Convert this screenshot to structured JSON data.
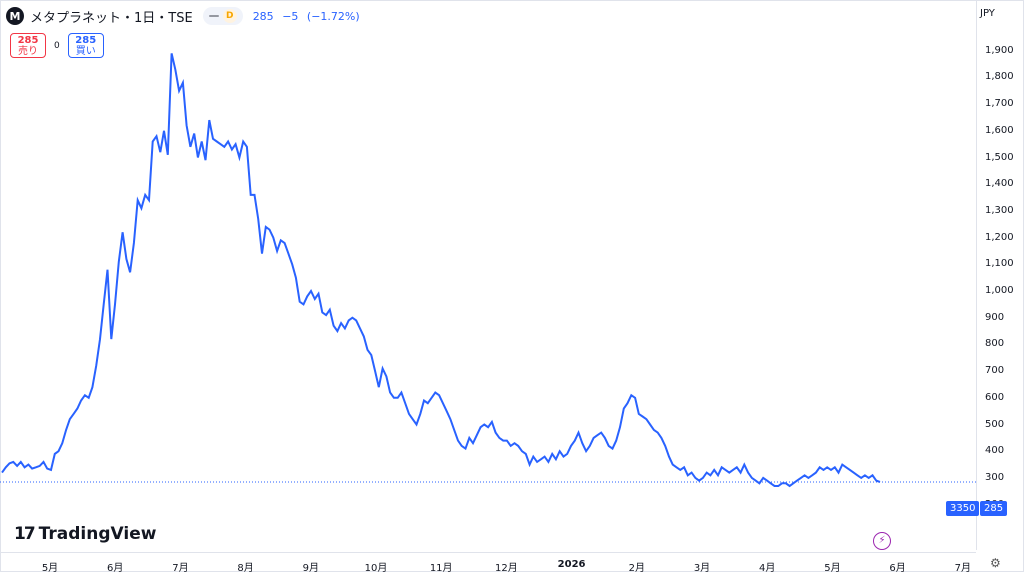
{
  "header": {
    "logo_letter": "M",
    "title": "メタプラネット・1日・TSE",
    "interval_badge": "D",
    "last": "285",
    "change": "−5",
    "change_pct": "(−1.72%)"
  },
  "trade": {
    "sell_price": "285",
    "sell_label": "売り",
    "spread": "0",
    "buy_price": "285",
    "buy_label": "買い"
  },
  "currency": "JPY",
  "price_tags": {
    "countdown": "3350",
    "last": "285"
  },
  "branding": {
    "name": "TradingView"
  },
  "colors": {
    "line": "#2962ff",
    "sell": "#f23645",
    "buy": "#2962ff",
    "flash": "#9c27b0"
  },
  "icons": {
    "settings": "gear-icon",
    "flash": "lightning-icon"
  },
  "chart_data": {
    "type": "line",
    "ylim": [
      150,
      2000
    ],
    "y_ticks": [
      "1,900",
      "1,800",
      "1,700",
      "1,600",
      "1,500",
      "1,400",
      "1,300",
      "1,200",
      "1,100",
      "1,000",
      "900",
      "800",
      "700",
      "600",
      "500",
      "400",
      "300",
      "200"
    ],
    "x_ticks": [
      "5月",
      "6月",
      "7月",
      "8月",
      "9月",
      "10月",
      "11月",
      "12月",
      "2026",
      "2月",
      "3月",
      "4月",
      "5月",
      "6月",
      "7月"
    ],
    "series": [
      {
        "values": [
          320,
          340,
          355,
          360,
          345,
          360,
          340,
          350,
          335,
          340,
          345,
          360,
          335,
          330,
          390,
          400,
          430,
          480,
          520,
          540,
          560,
          590,
          610,
          600,
          640,
          720,
          820,
          950,
          1080,
          820,
          950,
          1110,
          1220,
          1120,
          1070,
          1180,
          1340,
          1310,
          1360,
          1340,
          1560,
          1580,
          1520,
          1600,
          1510,
          1890,
          1830,
          1750,
          1780,
          1620,
          1540,
          1590,
          1500,
          1560,
          1490,
          1640,
          1570,
          1560,
          1550,
          1540,
          1560,
          1530,
          1550,
          1500,
          1560,
          1540,
          1360,
          1360,
          1270,
          1140,
          1240,
          1230,
          1200,
          1150,
          1190,
          1180,
          1140,
          1100,
          1050,
          960,
          950,
          980,
          1000,
          970,
          990,
          920,
          910,
          930,
          870,
          850,
          880,
          860,
          890,
          900,
          890,
          860,
          830,
          780,
          760,
          700,
          640,
          710,
          680,
          620,
          600,
          600,
          620,
          580,
          540,
          520,
          500,
          540,
          590,
          580,
          600,
          620,
          610,
          580,
          550,
          520,
          480,
          440,
          420,
          410,
          450,
          430,
          460,
          490,
          500,
          490,
          510,
          470,
          450,
          440,
          440,
          420,
          430,
          420,
          400,
          390,
          350,
          380,
          360,
          370,
          380,
          360,
          390,
          370,
          400,
          380,
          390,
          420,
          440,
          470,
          430,
          400,
          420,
          450,
          460,
          470,
          450,
          420,
          410,
          440,
          490,
          560,
          580,
          610,
          600,
          540,
          530,
          520,
          500,
          480,
          470,
          450,
          420,
          380,
          350,
          340,
          330,
          340,
          310,
          320,
          300,
          290,
          300,
          320,
          310,
          330,
          310,
          340,
          330,
          320,
          330,
          340,
          320,
          350,
          320,
          300,
          290,
          280,
          300,
          290,
          280,
          270,
          270,
          280,
          280,
          270,
          280,
          290,
          300,
          310,
          300,
          310,
          320,
          340,
          330,
          340,
          330,
          340,
          320,
          350,
          340,
          330,
          320,
          310,
          300,
          310,
          300,
          310,
          290,
          285
        ]
      }
    ]
  }
}
